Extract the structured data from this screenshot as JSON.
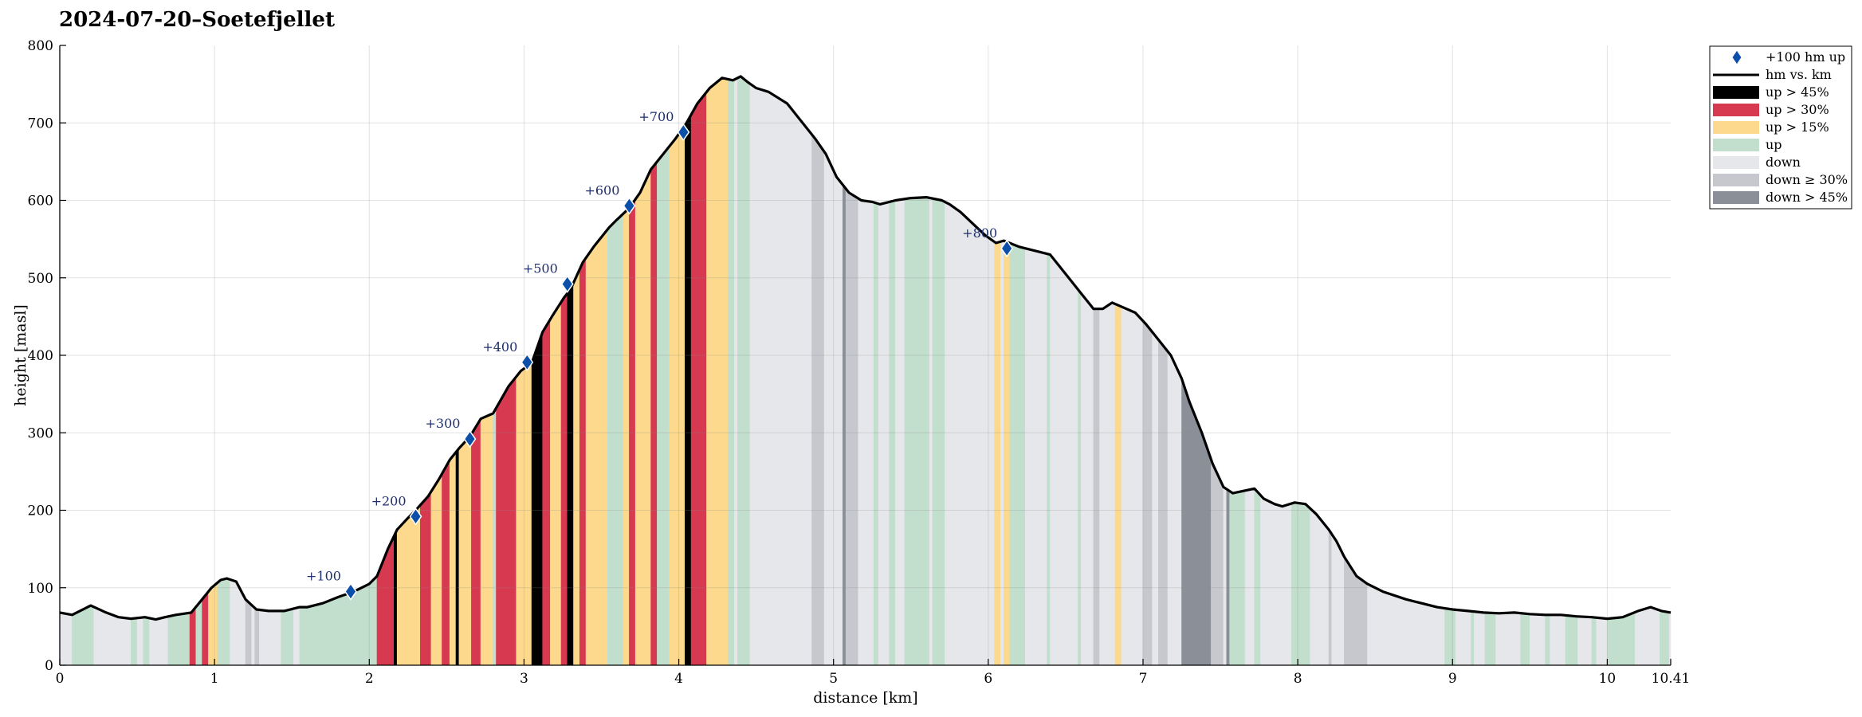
{
  "chart_data": {
    "type": "area",
    "title": "2024-07-20–Soetefjellet",
    "xlabel": "distance [km]",
    "ylabel": "height [masl]",
    "xlim": [
      0,
      10.41
    ],
    "ylim": [
      0,
      800
    ],
    "xticks": [
      "0",
      "1",
      "2",
      "3",
      "4",
      "5",
      "6",
      "7",
      "8",
      "9",
      "10",
      "10.41"
    ],
    "xtick_values": [
      0,
      1,
      2,
      3,
      4,
      5,
      6,
      7,
      8,
      9,
      10,
      10.41
    ],
    "yticks": [
      "0",
      "100",
      "200",
      "300",
      "400",
      "500",
      "600",
      "700",
      "800"
    ],
    "ytick_values": [
      0,
      100,
      200,
      300,
      400,
      500,
      600,
      700,
      800
    ],
    "grid": true,
    "legend_position": "outside top-right",
    "legend": [
      {
        "key": "marker",
        "label": "+100 hm up",
        "color": "#0b4fa8"
      },
      {
        "key": "line",
        "label": "hm vs. km",
        "color": "#000000"
      },
      {
        "key": "up45",
        "label": "up > 45%",
        "color": "#000000"
      },
      {
        "key": "up30",
        "label": "up > 30%",
        "color": "#d73a50"
      },
      {
        "key": "up15",
        "label": "up > 15%",
        "color": "#fcd98d"
      },
      {
        "key": "up",
        "label": "up",
        "color": "#c2decc"
      },
      {
        "key": "down",
        "label": "down",
        "color": "#e6e7ea"
      },
      {
        "key": "down30",
        "label": "down ≥ 30%",
        "color": "#c6c8ce"
      },
      {
        "key": "down45",
        "label": "down > 45%",
        "color": "#8b8f98"
      }
    ],
    "profile_x": [
      0,
      0.08,
      0.2,
      0.3,
      0.38,
      0.46,
      0.55,
      0.62,
      0.68,
      0.75,
      0.85,
      0.92,
      0.98,
      1.04,
      1.08,
      1.14,
      1.2,
      1.27,
      1.35,
      1.45,
      1.55,
      1.6,
      1.7,
      1.8,
      1.9,
      2.0,
      2.05,
      2.12,
      2.18,
      2.25,
      2.3,
      2.38,
      2.45,
      2.52,
      2.58,
      2.65,
      2.72,
      2.8,
      2.9,
      2.98,
      3.05,
      3.12,
      3.18,
      3.26,
      3.3,
      3.38,
      3.45,
      3.55,
      3.6,
      3.68,
      3.75,
      3.82,
      3.9,
      3.98,
      4.05,
      4.12,
      4.2,
      4.28,
      4.35,
      4.4,
      4.45,
      4.5,
      4.58,
      4.7,
      4.8,
      4.88,
      4.95,
      5.02,
      5.1,
      5.18,
      5.25,
      5.3,
      5.4,
      5.5,
      5.6,
      5.7,
      5.75,
      5.82,
      5.9,
      5.98,
      6.05,
      6.1,
      6.2,
      6.3,
      6.4,
      6.5,
      6.6,
      6.68,
      6.74,
      6.8,
      6.87,
      6.95,
      7.02,
      7.1,
      7.18,
      7.25,
      7.3,
      7.38,
      7.45,
      7.52,
      7.58,
      7.65,
      7.72,
      7.78,
      7.85,
      7.9,
      7.98,
      8.05,
      8.12,
      8.2,
      8.25,
      8.3,
      8.38,
      8.45,
      8.55,
      8.7,
      8.9,
      9.0,
      9.1,
      9.2,
      9.3,
      9.4,
      9.5,
      9.6,
      9.7,
      9.8,
      9.9,
      10.0,
      10.1,
      10.2,
      10.28,
      10.35,
      10.41
    ],
    "profile_y": [
      68,
      65,
      77,
      68,
      62,
      60,
      62,
      59,
      62,
      65,
      68,
      85,
      100,
      110,
      112,
      108,
      85,
      72,
      70,
      70,
      75,
      75,
      80,
      88,
      95,
      105,
      115,
      150,
      175,
      190,
      200,
      218,
      240,
      265,
      280,
      295,
      318,
      325,
      360,
      380,
      390,
      430,
      450,
      475,
      485,
      520,
      540,
      565,
      575,
      590,
      610,
      640,
      660,
      680,
      700,
      725,
      745,
      758,
      755,
      760,
      752,
      745,
      740,
      725,
      700,
      680,
      660,
      630,
      610,
      600,
      598,
      595,
      600,
      603,
      604,
      600,
      595,
      585,
      570,
      555,
      545,
      548,
      540,
      535,
      530,
      505,
      480,
      460,
      460,
      468,
      462,
      455,
      440,
      420,
      400,
      370,
      340,
      300,
      260,
      230,
      222,
      225,
      228,
      215,
      208,
      205,
      210,
      208,
      195,
      175,
      160,
      140,
      115,
      105,
      95,
      85,
      75,
      72,
      70,
      68,
      67,
      68,
      66,
      65,
      65,
      63,
      62,
      60,
      62,
      70,
      75,
      70,
      68
    ]
  }
}
